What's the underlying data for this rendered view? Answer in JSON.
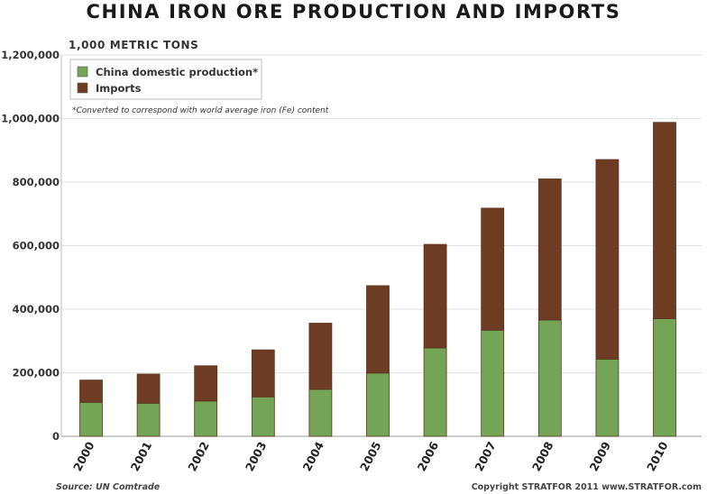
{
  "chart_data": {
    "type": "bar",
    "stacked": true,
    "title": "CHINA IRON ORE PRODUCTION AND IMPORTS",
    "unit_label": "1,000 METRIC TONS",
    "note": "*Converted to correspond with world average iron (Fe) content",
    "source": "Source: UN Comtrade",
    "copyright": "Copyright STRATFOR 2011   www.STRATFOR.com",
    "categories": [
      "2000",
      "2001",
      "2002",
      "2003",
      "2004",
      "2005",
      "2006",
      "2007",
      "2008",
      "2009",
      "2010"
    ],
    "series": [
      {
        "name": "China domestic production*",
        "color": "#74a556",
        "values": [
          107000,
          104000,
          111000,
          124000,
          148000,
          199000,
          278000,
          334000,
          366000,
          243000,
          370000
        ]
      },
      {
        "name": "Imports",
        "color": "#6e3c22",
        "values": [
          70000,
          92000,
          111000,
          148000,
          208000,
          275000,
          326000,
          384000,
          444000,
          628000,
          618000
        ]
      }
    ],
    "ylim": [
      0,
      1200000
    ],
    "yticks": [
      0,
      200000,
      400000,
      600000,
      800000,
      1000000,
      1200000
    ],
    "ytick_labels": [
      "0",
      "200,000",
      "400,000",
      "600,000",
      "800,000",
      "1,000,000",
      "1,200,000"
    ],
    "legend_position": "top-left",
    "grid": true,
    "gridline_color": "#e2e2e2",
    "bar_edge_color": "#5a3520"
  }
}
